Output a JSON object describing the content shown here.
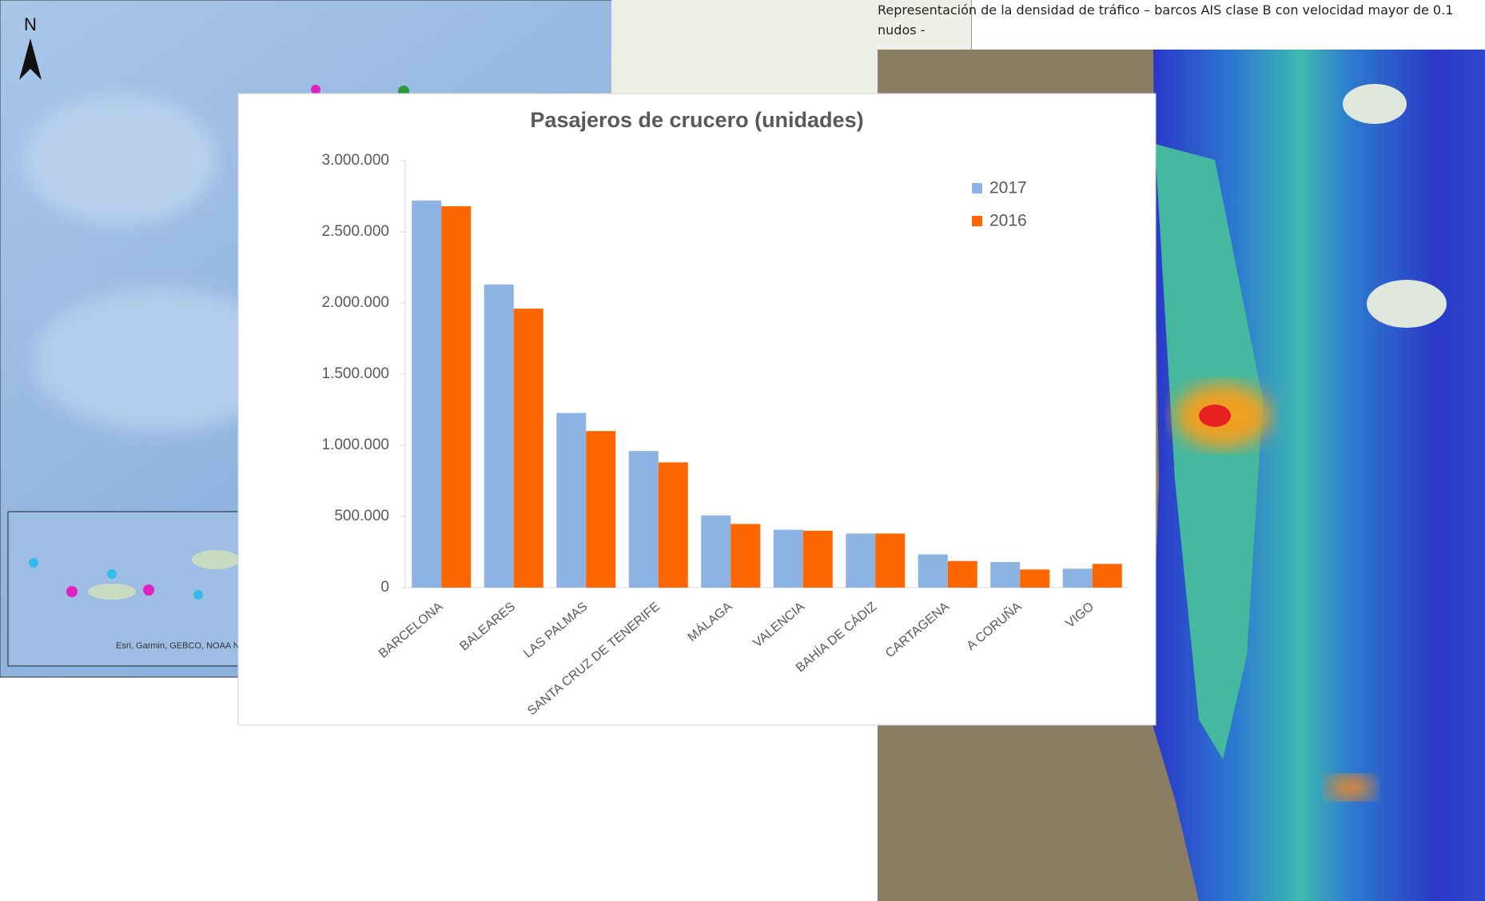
{
  "caption": "Representación de la densidad de tráfico – barcos AIS clase B con velocidad mayor de 0.1 nudos -",
  "map": {
    "north": "N",
    "attribution": "Esri, Garmin, GEBCO, NOAA NGDC, and other contributors"
  },
  "chart_data": {
    "type": "bar",
    "title": "Pasajeros de crucero (unidades)",
    "categories": [
      "BARCELONA",
      "BALEARES",
      "LAS PALMAS",
      "SANTA CRUZ DE TENERIFE",
      "MÁLAGA",
      "VALENCIA",
      "BAHÍA DE CÁDIZ",
      "CARTAGENA",
      "A CORUÑA",
      "VIGO"
    ],
    "series": [
      {
        "name": "2017",
        "color": "#8db3e2",
        "values": [
          2720000,
          2130000,
          1227000,
          960000,
          507000,
          407000,
          380000,
          233000,
          180000,
          133000
        ]
      },
      {
        "name": "2016",
        "color": "#ff6600",
        "values": [
          2680000,
          1960000,
          1100000,
          880000,
          447000,
          400000,
          380000,
          187000,
          127000,
          167000
        ]
      }
    ],
    "ylim": [
      0,
      3000000
    ],
    "yticks": [
      0,
      {
        "value": 500000,
        "label": "500.000"
      },
      {
        "value": 1000000,
        "label": "1.000.000"
      },
      {
        "value": 1500000,
        "label": "1.500.000"
      },
      {
        "value": 2000000,
        "label": "2.000.000"
      },
      {
        "value": 2500000,
        "label": "2.500.000"
      },
      {
        "value": 3000000,
        "label": "3.000.000"
      }
    ],
    "legend": "top-right",
    "grid": false
  }
}
